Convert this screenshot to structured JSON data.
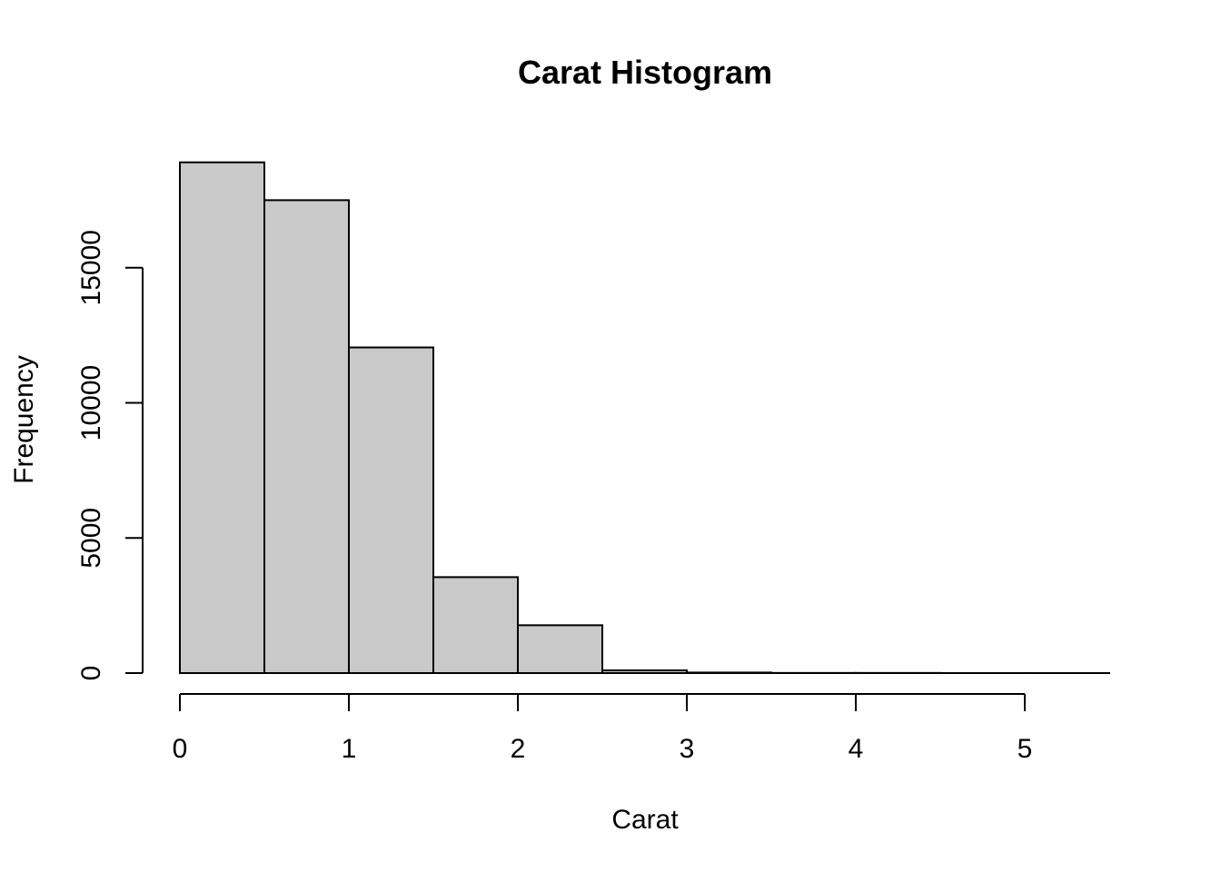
{
  "chart_data": {
    "type": "bar",
    "subtype": "histogram",
    "title": "Carat Histogram",
    "xlabel": "Carat",
    "ylabel": "Frequency",
    "bins": [
      {
        "x0": 0.0,
        "x1": 0.5,
        "value": 18900
      },
      {
        "x0": 0.5,
        "x1": 1.0,
        "value": 17500
      },
      {
        "x0": 1.0,
        "x1": 1.5,
        "value": 12050
      },
      {
        "x0": 1.5,
        "x1": 2.0,
        "value": 3550
      },
      {
        "x0": 2.0,
        "x1": 2.5,
        "value": 1770
      },
      {
        "x0": 2.5,
        "x1": 3.0,
        "value": 100
      },
      {
        "x0": 3.0,
        "x1": 3.5,
        "value": 20
      },
      {
        "x0": 3.5,
        "x1": 4.0,
        "value": 5
      },
      {
        "x0": 4.0,
        "x1": 4.5,
        "value": 5
      },
      {
        "x0": 4.5,
        "x1": 5.0,
        "value": 1
      },
      {
        "x0": 5.0,
        "x1": 5.5,
        "value": 1
      }
    ],
    "xlim": [
      0,
      5.5
    ],
    "ylim": [
      0,
      18900
    ],
    "x_ticks": [
      0,
      1,
      2,
      3,
      4,
      5
    ],
    "x_tick_labels": [
      "0",
      "1",
      "2",
      "3",
      "4",
      "5"
    ],
    "y_ticks": [
      0,
      5000,
      10000,
      15000
    ],
    "y_tick_labels": [
      "0",
      "5000",
      "10000",
      "15000"
    ],
    "bar_color": "#c9c9c9",
    "edge_color": "#000000",
    "grid": false,
    "legend": "none"
  }
}
